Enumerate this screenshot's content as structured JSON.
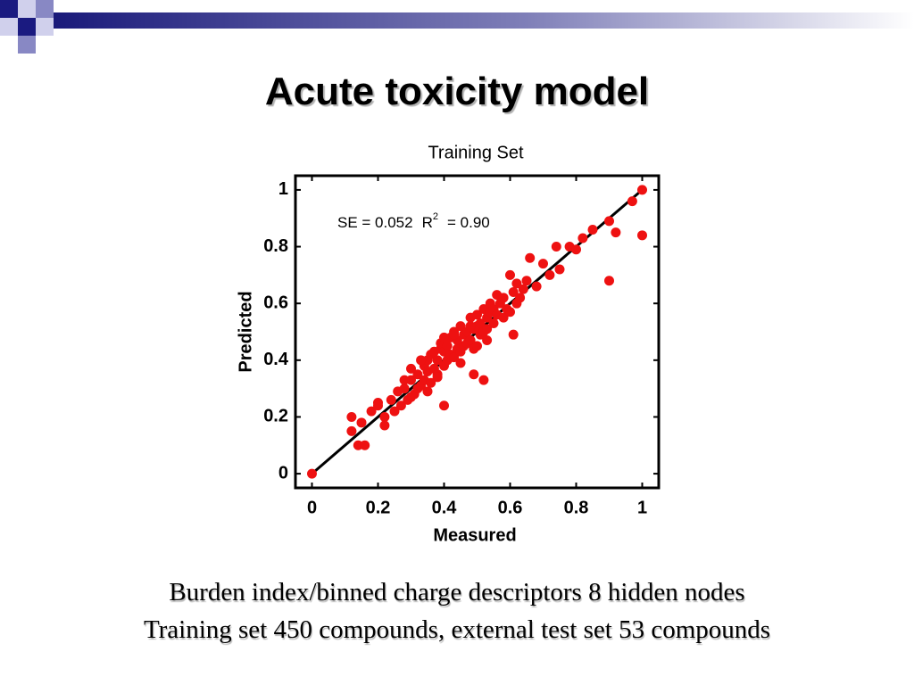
{
  "slide": {
    "title": "Acute toxicity model",
    "caption": [
      "Burden index/binned charge descriptors  8 hidden nodes",
      "Training set 450 compounds, external test set 53 compounds"
    ]
  },
  "chart_data": {
    "type": "scatter",
    "title": "Training Set",
    "xlabel": "Measured",
    "ylabel": "Predicted",
    "annotation": {
      "se": "SE  =  0.052",
      "r": "R",
      "sup": "2",
      "r2": "=  0.90"
    },
    "xlim": [
      -0.05,
      1.05
    ],
    "ylim": [
      -0.05,
      1.05
    ],
    "xticks": [
      0,
      0.2,
      0.4,
      0.6,
      0.8,
      1
    ],
    "yticks": [
      0,
      0.2,
      0.4,
      0.6,
      0.8,
      1
    ],
    "grid": false,
    "color": "#ee1111",
    "fit_line": {
      "color": "#000000",
      "x": [
        0,
        1
      ],
      "y": [
        0,
        1
      ]
    },
    "x": [
      0,
      1,
      1,
      0.9,
      0.97,
      0.9,
      0.92,
      0.85,
      0.82,
      0.78,
      0.8,
      0.12,
      0.12,
      0.14,
      0.16,
      0.18,
      0.15,
      0.2,
      0.22,
      0.4,
      0.52,
      0.61,
      0.49,
      0.66,
      0.7,
      0.68,
      0.75,
      0.74,
      0.72,
      0.56,
      0.62,
      0.6,
      0.2,
      0.22,
      0.24,
      0.25,
      0.26,
      0.27,
      0.28,
      0.29,
      0.3,
      0.3,
      0.31,
      0.32,
      0.32,
      0.33,
      0.34,
      0.34,
      0.35,
      0.35,
      0.36,
      0.36,
      0.37,
      0.37,
      0.38,
      0.38,
      0.39,
      0.39,
      0.4,
      0.4,
      0.41,
      0.41,
      0.42,
      0.42,
      0.43,
      0.43,
      0.44,
      0.44,
      0.45,
      0.45,
      0.46,
      0.46,
      0.47,
      0.47,
      0.48,
      0.48,
      0.49,
      0.49,
      0.5,
      0.5,
      0.51,
      0.51,
      0.52,
      0.52,
      0.53,
      0.53,
      0.54,
      0.54,
      0.55,
      0.55,
      0.56,
      0.57,
      0.58,
      0.58,
      0.59,
      0.6,
      0.61,
      0.62,
      0.63,
      0.64,
      0.65,
      0.3,
      0.35,
      0.4,
      0.45,
      0.5,
      0.28,
      0.33,
      0.38,
      0.43,
      0.48,
      0.53
    ],
    "y": [
      0,
      1,
      0.84,
      0.68,
      0.96,
      0.89,
      0.85,
      0.86,
      0.83,
      0.8,
      0.79,
      0.2,
      0.15,
      0.1,
      0.1,
      0.22,
      0.18,
      0.25,
      0.17,
      0.24,
      0.33,
      0.49,
      0.35,
      0.76,
      0.74,
      0.66,
      0.72,
      0.8,
      0.7,
      0.63,
      0.67,
      0.7,
      0.24,
      0.2,
      0.26,
      0.22,
      0.29,
      0.24,
      0.3,
      0.26,
      0.33,
      0.27,
      0.28,
      0.35,
      0.3,
      0.31,
      0.38,
      0.33,
      0.36,
      0.4,
      0.32,
      0.42,
      0.37,
      0.43,
      0.4,
      0.35,
      0.44,
      0.46,
      0.38,
      0.43,
      0.45,
      0.4,
      0.48,
      0.42,
      0.41,
      0.5,
      0.44,
      0.47,
      0.43,
      0.52,
      0.49,
      0.45,
      0.5,
      0.46,
      0.55,
      0.47,
      0.51,
      0.44,
      0.52,
      0.56,
      0.49,
      0.53,
      0.5,
      0.58,
      0.55,
      0.51,
      0.57,
      0.6,
      0.53,
      0.58,
      0.56,
      0.6,
      0.55,
      0.62,
      0.58,
      0.57,
      0.64,
      0.6,
      0.62,
      0.65,
      0.68,
      0.37,
      0.29,
      0.48,
      0.39,
      0.45,
      0.33,
      0.4,
      0.34,
      0.49,
      0.52,
      0.47
    ]
  }
}
